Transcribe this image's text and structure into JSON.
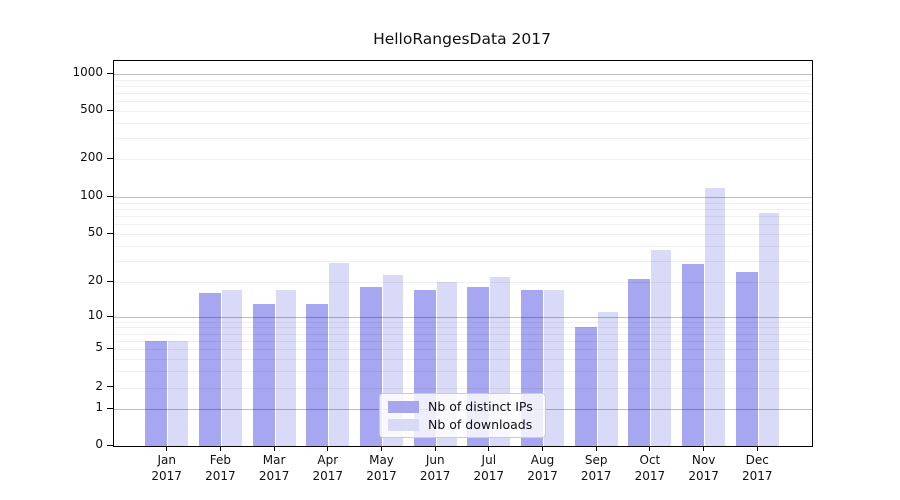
{
  "title": "HelloRangesData 2017",
  "legend": {
    "items": [
      {
        "label": "Nb of distinct IPs",
        "color": "#a6a6f1"
      },
      {
        "label": "Nb of downloads",
        "color": "#d9d9f8"
      }
    ]
  },
  "axes": {
    "y_tick_labels": [
      "0",
      "1",
      "2",
      "5",
      "10",
      "20",
      "50",
      "100",
      "200",
      "500",
      "1000"
    ],
    "x_year_label": "2017"
  },
  "colors": {
    "bar_distinct_ips": "#a6a6f1",
    "bar_downloads": "#d9d9f8",
    "grid_minor": "rgba(0,0,0,0.06)",
    "grid_major": "rgba(0,0,0,0.26)",
    "axis": "#000000"
  },
  "chart_data": {
    "type": "bar",
    "title": "HelloRangesData 2017",
    "categories": [
      "Jan",
      "Feb",
      "Mar",
      "Apr",
      "May",
      "Jun",
      "Jul",
      "Aug",
      "Sep",
      "Oct",
      "Nov",
      "Dec"
    ],
    "category_year": "2017",
    "series": [
      {
        "name": "Nb of distinct IPs",
        "color": "#a6a6f1",
        "values": [
          6,
          16,
          13,
          13,
          18,
          17,
          18,
          17,
          8,
          21,
          28,
          24
        ]
      },
      {
        "name": "Nb of downloads",
        "color": "#d9d9f8",
        "values": [
          6,
          17,
          17,
          29,
          23,
          20,
          22,
          17,
          11,
          37,
          118,
          74
        ]
      }
    ],
    "xlabel": "",
    "ylabel": "",
    "yscale": "log",
    "y_ticks": [
      0,
      1,
      2,
      5,
      10,
      20,
      50,
      100,
      200,
      500,
      1000
    ],
    "ylim": [
      0,
      1400
    ],
    "grid": true,
    "grid_minor_values": [
      3,
      4,
      6,
      7,
      8,
      9,
      30,
      40,
      60,
      70,
      80,
      90,
      300,
      400,
      600,
      700,
      800,
      900
    ],
    "legend_position": "lower center"
  }
}
